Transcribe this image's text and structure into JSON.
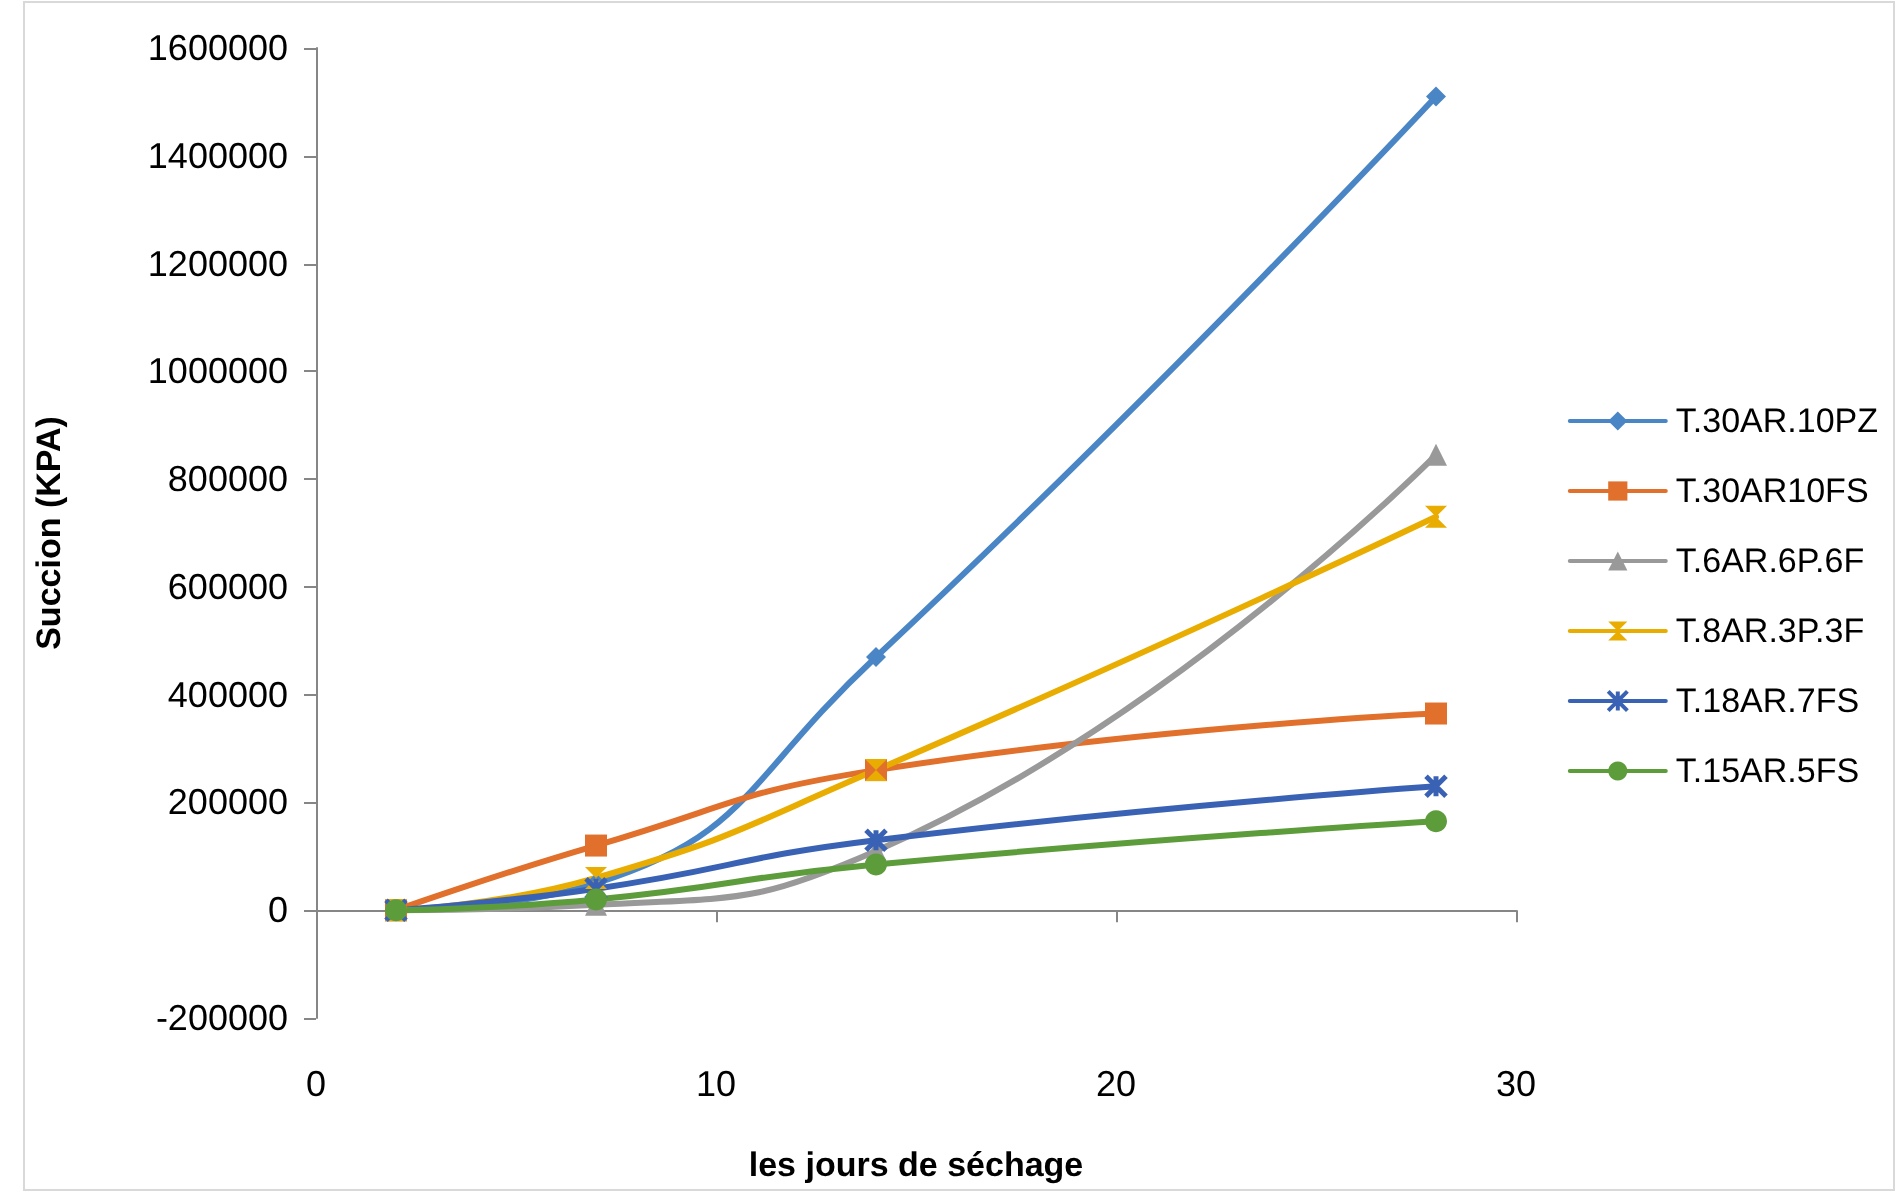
{
  "chart_data": {
    "type": "line",
    "xlabel": "les jours de séchage",
    "ylabel": "Succion (KPA)",
    "xlim": [
      0,
      30
    ],
    "xticks": [
      0,
      10,
      20,
      30
    ],
    "ylim": [
      -200000,
      1600000
    ],
    "yticks": [
      -200000,
      0,
      200000,
      400000,
      600000,
      800000,
      1000000,
      1200000,
      1400000,
      1600000
    ],
    "legend": "right",
    "line_style": "solid",
    "x": [
      2,
      7,
      14,
      28
    ],
    "series": [
      {
        "name": "T.30AR.10PZ",
        "color": "#4a86c5",
        "marker": "diamond",
        "values": [
          0,
          50000,
          470000,
          1510000
        ]
      },
      {
        "name": "T.30AR10FS",
        "color": "#e0702c",
        "marker": "square",
        "values": [
          0,
          120000,
          260000,
          365000
        ]
      },
      {
        "name": "T.6AR.6P.6F",
        "color": "#999999",
        "marker": "triangle",
        "values": [
          0,
          10000,
          110000,
          845000
        ]
      },
      {
        "name": "T.8AR.3P.3F",
        "color": "#e8ad00",
        "marker": "star",
        "values": [
          0,
          60000,
          260000,
          730000
        ]
      },
      {
        "name": "T.18AR.7FS",
        "color": "#3a62b4",
        "marker": "cross",
        "values": [
          0,
          40000,
          130000,
          230000
        ]
      },
      {
        "name": "T.15AR.5FS",
        "color": "#5d9c3a",
        "marker": "circle",
        "values": [
          0,
          20000,
          85000,
          165000
        ]
      }
    ]
  }
}
